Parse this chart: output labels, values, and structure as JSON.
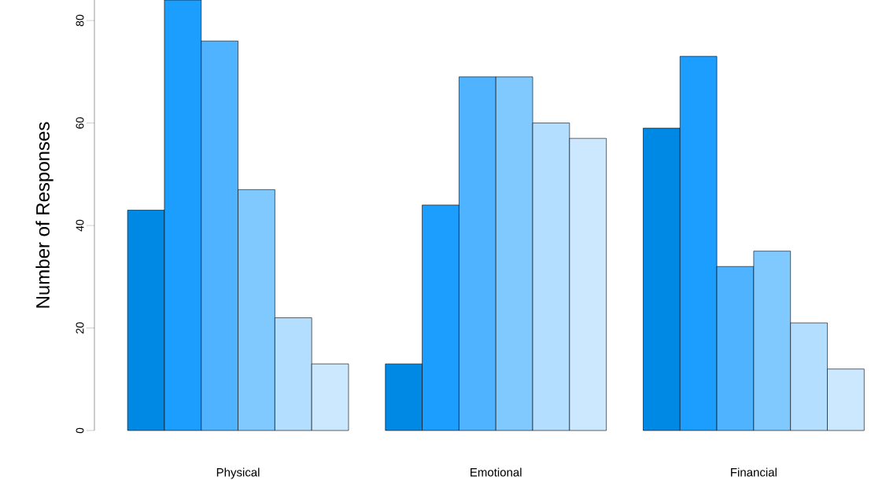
{
  "chart_data": {
    "type": "bar",
    "ylabel": "Number of Responses",
    "categories": [
      "Physical",
      "Emotional",
      "Financial"
    ],
    "series": [
      {
        "color": "#0088e5",
        "values": [
          43,
          13,
          59
        ]
      },
      {
        "color": "#1c9eff",
        "values": [
          84,
          44,
          73
        ]
      },
      {
        "color": "#4fb3ff",
        "values": [
          76,
          69,
          32
        ]
      },
      {
        "color": "#80c9ff",
        "values": [
          47,
          69,
          35
        ]
      },
      {
        "color": "#b3deff",
        "values": [
          22,
          60,
          21
        ]
      },
      {
        "color": "#cce8ff",
        "values": [
          13,
          57,
          12
        ]
      }
    ],
    "ylim": [
      0,
      84
    ],
    "yticks": [
      0,
      20,
      40,
      60,
      80
    ]
  }
}
